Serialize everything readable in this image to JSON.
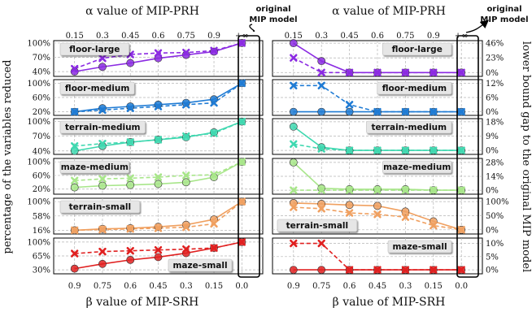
{
  "chart_data": [
    {
      "type": "line",
      "position": "left",
      "top_axis_title": "α value of MIP-PRH",
      "top_ticks": [
        "0.15",
        "0.3",
        "0.45",
        "0.6",
        "0.75",
        "0.9",
        "+∞"
      ],
      "bottom_axis_title": "β value of MIP-SRH",
      "bottom_ticks": [
        "0.9",
        "0.75",
        "0.6",
        "0.45",
        "0.3",
        "0.15",
        "0.0"
      ],
      "side_title": "percentage of the variables reduced",
      "original_label_line1": "original",
      "original_label_line2": "MIP model",
      "grid": true,
      "panels": [
        {
          "label": "floor-large",
          "label_position": "top-left",
          "color": "#8b2be2",
          "yticks": [
            "100%",
            "70%",
            "40%"
          ],
          "ylim": [
            30,
            105
          ],
          "solid_circles": [
            40,
            50,
            58,
            68,
            75,
            82,
            100
          ],
          "dashed_crosses": [
            46,
            68,
            76,
            79,
            80,
            84,
            100
          ]
        },
        {
          "label": "floor-medium",
          "label_position": "top-left",
          "color": "#1f7bd4",
          "yticks": [
            "100%",
            "60%",
            "20%"
          ],
          "ylim": [
            10,
            110
          ],
          "solid_circles": [
            20,
            30,
            35,
            40,
            45,
            55,
            100
          ],
          "dashed_crosses": [
            20,
            25,
            30,
            35,
            40,
            45,
            100
          ]
        },
        {
          "label": "terrain-medium",
          "label_position": "top-left",
          "color": "#40d8b0",
          "yticks": [
            "100%",
            "70%",
            "40%"
          ],
          "ylim": [
            33,
            106
          ],
          "solid_circles": [
            40,
            50,
            58,
            63,
            68,
            78,
            100
          ],
          "dashed_crosses": [
            50,
            55,
            58,
            63,
            70,
            76,
            100
          ]
        },
        {
          "label": "maze-medium",
          "label_position": "top-left",
          "color": "#a8e68a",
          "yticks": [
            "100%",
            "60%",
            "20%"
          ],
          "ylim": [
            5,
            110
          ],
          "solid_circles": [
            25,
            30,
            32,
            35,
            40,
            55,
            100
          ],
          "dashed_crosses": [
            45,
            50,
            52,
            55,
            60,
            62,
            100
          ]
        },
        {
          "label": "terrain-small",
          "label_position": "top-left",
          "color": "#f0a060",
          "yticks": [
            "100%",
            "58%",
            "16%"
          ],
          "ylim": [
            5,
            110
          ],
          "solid_circles": [
            16,
            20,
            22,
            26,
            32,
            48,
            100
          ],
          "dashed_crosses": [
            16,
            18,
            20,
            22,
            25,
            35,
            100
          ]
        },
        {
          "label": "maze-small",
          "label_position": "bottom-right",
          "color": "#e02020",
          "yticks": [
            "100%",
            "65%",
            "30%"
          ],
          "ylim": [
            20,
            110
          ],
          "solid_circles": [
            33,
            45,
            55,
            62,
            72,
            85,
            100
          ],
          "dashed_crosses": [
            71,
            76,
            78,
            80,
            82,
            85,
            100
          ]
        }
      ]
    },
    {
      "type": "line",
      "position": "right",
      "top_axis_title": "α value of MIP-PRH",
      "top_ticks": [
        "0.15",
        "0.3",
        "0.45",
        "0.6",
        "0.75",
        "0.9",
        "+∞"
      ],
      "bottom_axis_title": "β value of MIP-SRH",
      "bottom_ticks": [
        "0.9",
        "0.75",
        "0.6",
        "0.45",
        "0.3",
        "0.15",
        "0.0"
      ],
      "side_title": "lower bound gap to the original MIP model",
      "original_label_line1": "original",
      "original_label_line2": "MIP model",
      "grid": true,
      "panels": [
        {
          "label": "floor-large",
          "label_position": "top-right",
          "color": "#8b2be2",
          "yticks": [
            "46%",
            "23%",
            "0%"
          ],
          "ylim": [
            -6,
            50
          ],
          "solid_circles": [
            46,
            18,
            0,
            0,
            0,
            0,
            0
          ],
          "dashed_crosses": [
            23,
            0,
            0,
            0,
            0,
            0,
            0
          ]
        },
        {
          "label": "floor-medium",
          "label_position": "top-right",
          "color": "#1f7bd4",
          "yticks": [
            "12%",
            "6%",
            "0%"
          ],
          "ylim": [
            -1.5,
            13.5
          ],
          "solid_circles": [
            0,
            0,
            0,
            0,
            0,
            0,
            0
          ],
          "dashed_crosses": [
            11,
            11,
            3,
            0,
            0,
            0,
            0
          ]
        },
        {
          "label": "terrain-medium",
          "label_position": "top-right",
          "color": "#40d8b0",
          "yticks": [
            "18%",
            "9%",
            "0%"
          ],
          "ylim": [
            -2.5,
            20
          ],
          "solid_circles": [
            15,
            2,
            0,
            0,
            0,
            0,
            0
          ],
          "dashed_crosses": [
            4,
            1,
            0,
            0,
            0,
            0,
            0
          ]
        },
        {
          "label": "maze-medium",
          "label_position": "top-right",
          "color": "#a8e68a",
          "yticks": [
            "28%",
            "14%",
            "0%"
          ],
          "ylim": [
            -4,
            32
          ],
          "solid_circles": [
            28,
            2,
            1,
            1,
            1,
            0,
            0
          ],
          "dashed_crosses": [
            0,
            0,
            0,
            0,
            0,
            0,
            0
          ]
        },
        {
          "label": "terrain-small",
          "label_position": "bottom-left",
          "color": "#f0a060",
          "yticks": [
            "100%",
            "50%",
            "0%"
          ],
          "ylim": [
            -15,
            112
          ],
          "solid_circles": [
            95,
            92,
            88,
            85,
            65,
            30,
            0
          ],
          "dashed_crosses": [
            80,
            75,
            60,
            55,
            45,
            15,
            0
          ]
        },
        {
          "label": "maze-small",
          "label_position": "top-right",
          "color": "#e02020",
          "yticks": [
            "10%",
            "5%",
            "0%"
          ],
          "ylim": [
            -1.5,
            12
          ],
          "solid_circles": [
            0,
            0,
            0,
            0,
            0,
            0,
            0
          ],
          "dashed_crosses": [
            10,
            10,
            0,
            0,
            0,
            0,
            0
          ]
        }
      ]
    }
  ]
}
